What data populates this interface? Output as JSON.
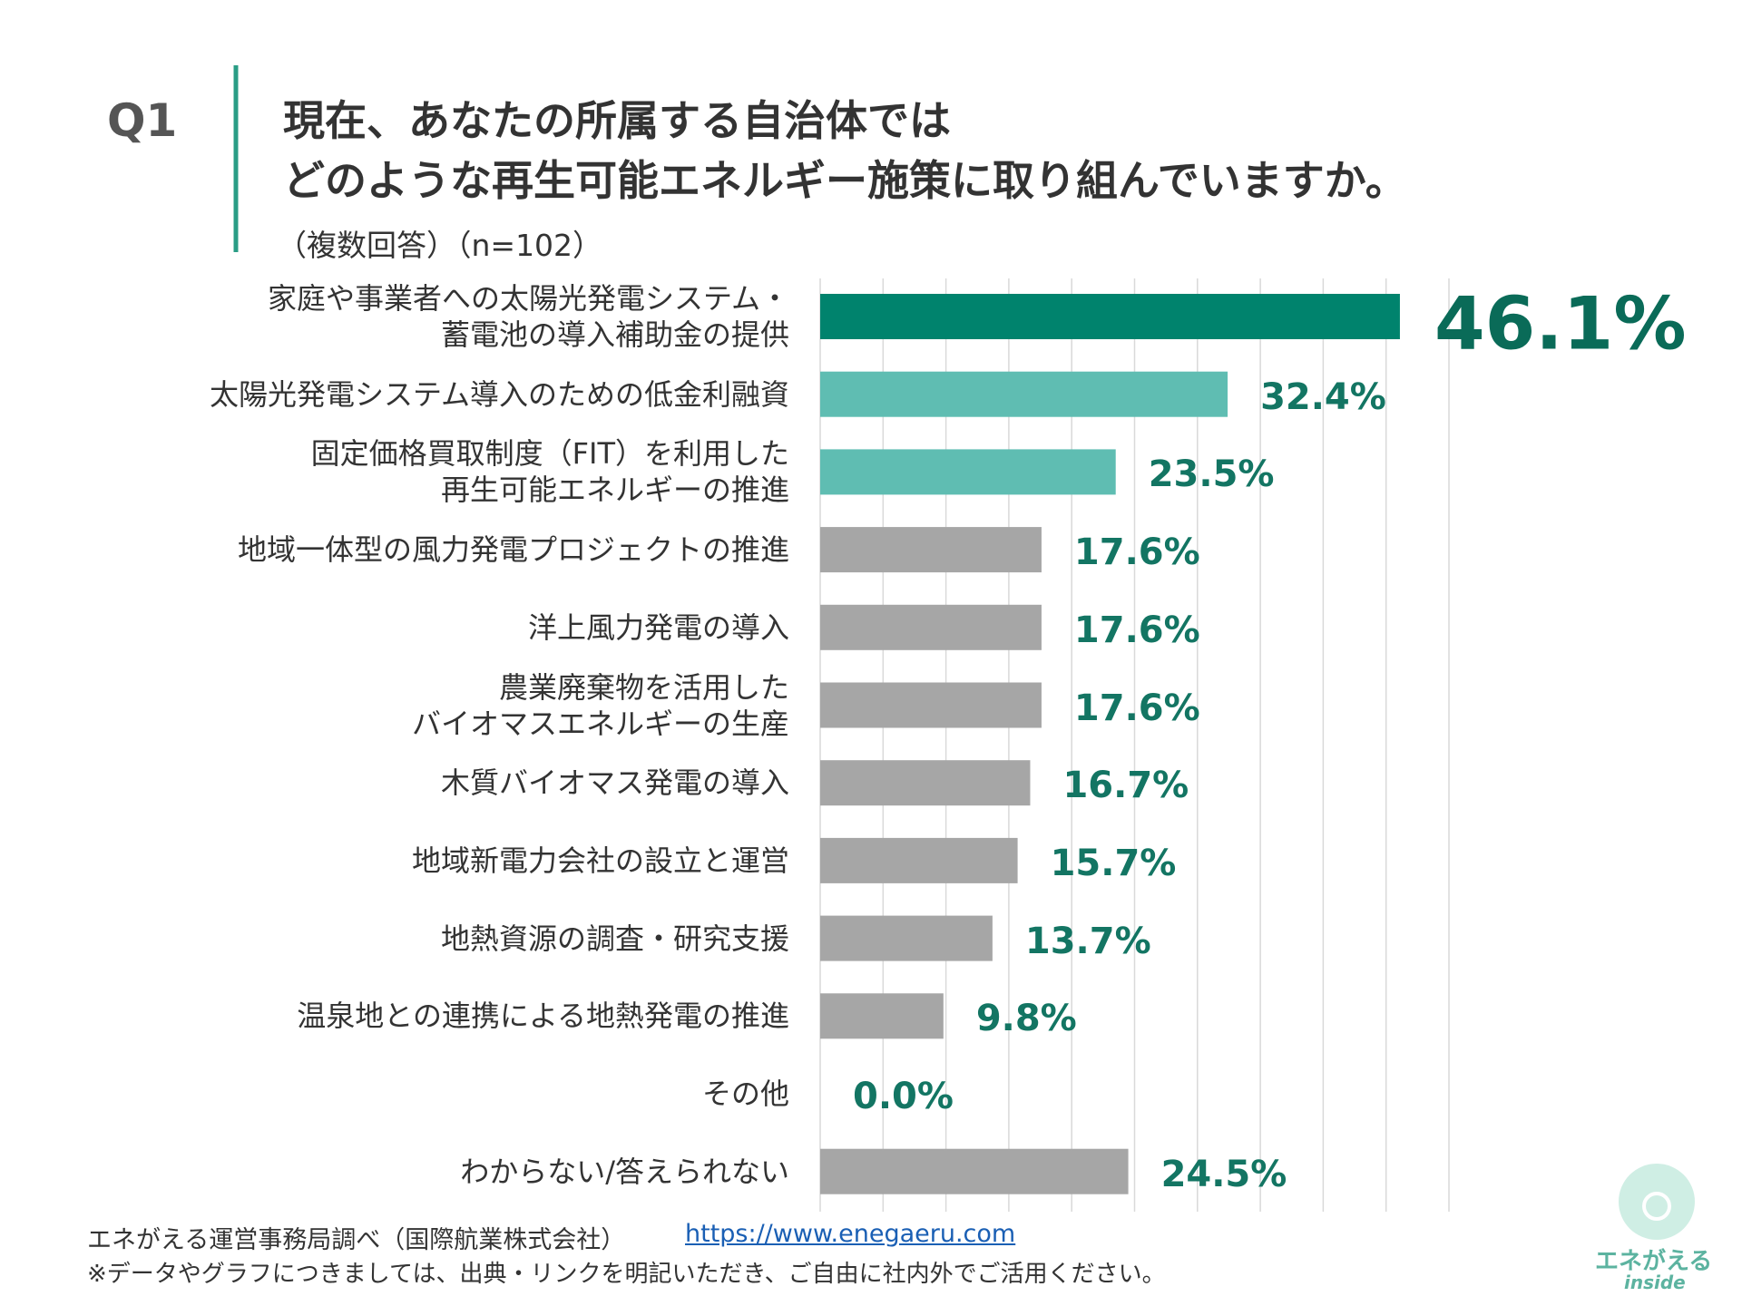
{
  "chart_data": {
    "type": "bar",
    "orientation": "horizontal",
    "question_number": "Q1",
    "title": "現在、あなたの所属する自治体では\nどのような再生可能エネルギー施策に取り組んでいますか。",
    "subtitle": "（複数回答）（n=102）",
    "categories": [
      "家庭や事業者への太陽光発電システム・\n蓄電池の導入補助金の提供",
      "太陽光発電システム導入のための低金利融資",
      "固定価格買取制度（FIT）を利用した\n再生可能エネルギーの推進",
      "地域一体型の風力発電プロジェクトの推進",
      "洋上風力発電の導入",
      "農業廃棄物を活用した\nバイオマスエネルギーの生産",
      "木質バイオマス発電の導入",
      "地域新電力会社の設立と運営",
      "地熱資源の調査・研究支援",
      "温泉地との連携による地熱発電の推進",
      "その他",
      "わからない/答えられない"
    ],
    "values": [
      46.1,
      32.4,
      23.5,
      17.6,
      17.6,
      17.6,
      16.7,
      15.7,
      13.7,
      9.8,
      0.0,
      24.5
    ],
    "value_labels": [
      "46.1%",
      "32.4%",
      "23.5%",
      "17.6%",
      "17.6%",
      "17.6%",
      "16.7%",
      "15.7%",
      "13.7%",
      "9.8%",
      "0.0%",
      "24.5%"
    ],
    "colors": [
      "#00836d",
      "#5fbdb2",
      "#5fbdb2",
      "#a6a6a6",
      "#a6a6a6",
      "#a6a6a6",
      "#a6a6a6",
      "#a6a6a6",
      "#a6a6a6",
      "#a6a6a6",
      "#a6a6a6",
      "#a6a6a6"
    ],
    "xlim": [
      0,
      50
    ],
    "xticks": [
      0,
      5,
      10,
      15,
      20,
      25,
      30,
      35,
      40,
      45,
      50
    ],
    "grid": true
  },
  "footer": {
    "source": "エネがえる運営事務局調べ（国際航業株式会社）",
    "url": "https://www.enegaeru.com",
    "note": "※データやグラフにつきましては、出典・リンクを明記いただき、ご自由に社内外でご活用ください。"
  },
  "logo": {
    "name": "エネがえる",
    "tagline": "inside"
  }
}
